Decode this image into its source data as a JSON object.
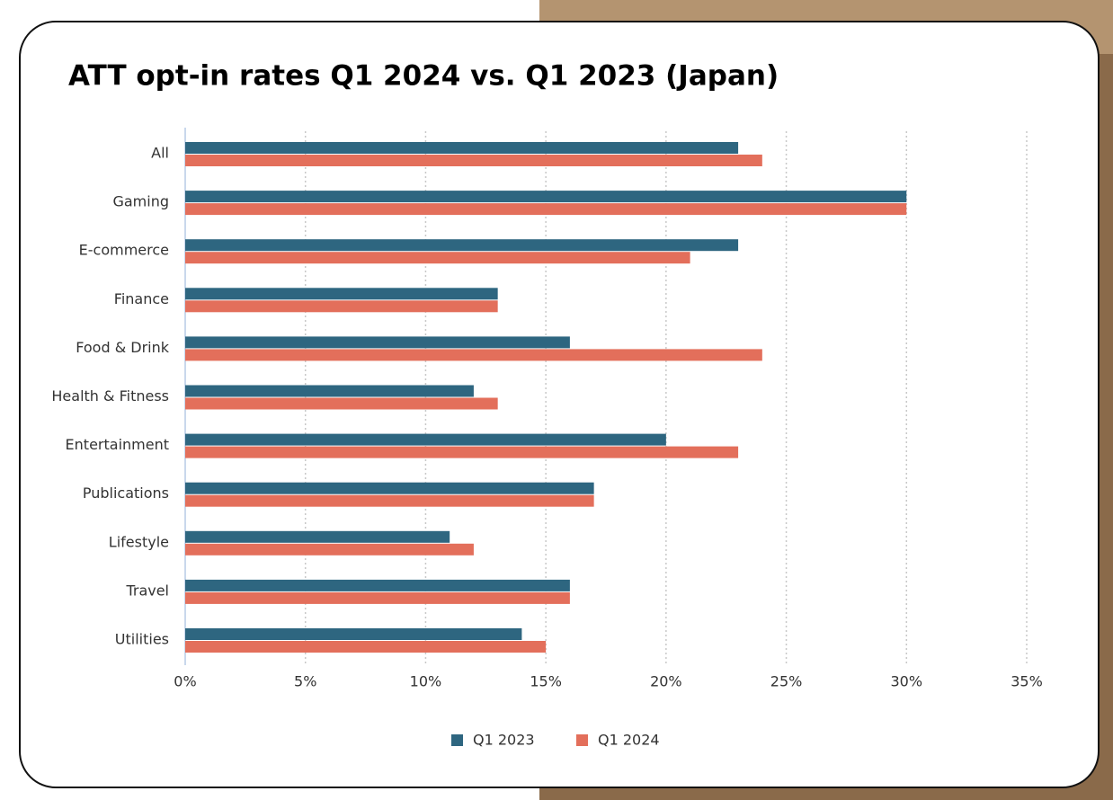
{
  "chart_data": {
    "type": "hbar",
    "title": "ATT opt-in rates Q1 2024 vs. Q1 2023 (Japan)",
    "categories": [
      "All",
      "Gaming",
      "E-commerce",
      "Finance",
      "Food & Drink",
      "Health & Fitness",
      "Entertainment",
      "Publications",
      "Lifestyle",
      "Travel",
      "Utilities"
    ],
    "series": [
      {
        "name": "Q1 2023",
        "color": "#2e6680",
        "values": [
          23,
          30,
          23,
          13,
          16,
          12,
          20,
          17,
          11,
          16,
          14
        ]
      },
      {
        "name": "Q1 2024",
        "color": "#e36f5b",
        "values": [
          24,
          30,
          21,
          13,
          24,
          13,
          23,
          17,
          12,
          16,
          15
        ]
      }
    ],
    "xlim": [
      0,
      35
    ],
    "xticks": [
      {
        "value": 0,
        "label": "0%"
      },
      {
        "value": 5,
        "label": "5%"
      },
      {
        "value": 10,
        "label": "10%"
      },
      {
        "value": 15,
        "label": "15%"
      },
      {
        "value": 20,
        "label": "20%"
      },
      {
        "value": 25,
        "label": "25%"
      },
      {
        "value": 30,
        "label": "30%"
      },
      {
        "value": 35,
        "label": "35%"
      }
    ],
    "grid": true,
    "legend": "bottom"
  }
}
